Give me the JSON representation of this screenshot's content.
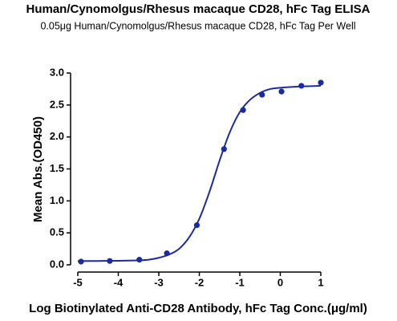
{
  "chart_data": {
    "type": "scatter",
    "title": "Human/Cynomolgus/Rhesus macaque CD28, hFc Tag ELISA",
    "subtitle": "0.05μg Human/Cynomolgus/Rhesus macaque CD28, hFc Tag Per Well",
    "x_label": "Log Biotinylated Anti-CD28 Antibody, hFc Tag Conc.(μg/ml)",
    "y_label": "Mean Abs.(OD450)",
    "color": "#1c2a9c",
    "x": [
      -4.92,
      -4.21,
      -3.48,
      -2.8,
      -2.06,
      -1.39,
      -0.92,
      -0.45,
      0.03,
      0.52,
      1.0
    ],
    "values": [
      0.05,
      0.06,
      0.08,
      0.18,
      0.62,
      1.81,
      2.42,
      2.66,
      2.71,
      2.8,
      2.85
    ],
    "curve": {
      "x": [
        -5,
        -4.5,
        -4,
        -3.5,
        -3.25,
        -3,
        -2.75,
        -2.5,
        -2.25,
        -2,
        -1.75,
        -1.5,
        -1.25,
        -1,
        -0.75,
        -0.5,
        -0.25,
        0,
        0.5,
        1
      ],
      "values": [
        0.06,
        0.06,
        0.063,
        0.07,
        0.08,
        0.11,
        0.16,
        0.25,
        0.43,
        0.72,
        1.14,
        1.63,
        2.07,
        2.39,
        2.58,
        2.69,
        2.75,
        2.77,
        2.79,
        2.8
      ]
    },
    "xlim": [
      -5,
      1
    ],
    "xticks": [
      -5,
      -4,
      -3,
      -2,
      -1,
      0,
      1
    ],
    "ylim": [
      0,
      3
    ],
    "yticks": [
      {
        "value": 0,
        "label": "0.0"
      },
      {
        "value": 0.5,
        "label": "0.5"
      },
      {
        "value": 1,
        "label": "1.0"
      },
      {
        "value": 1.5,
        "label": "1.5"
      },
      {
        "value": 2,
        "label": "2.0"
      },
      {
        "value": 2.5,
        "label": "2.5"
      },
      {
        "value": 3,
        "label": "3.0"
      }
    ]
  }
}
